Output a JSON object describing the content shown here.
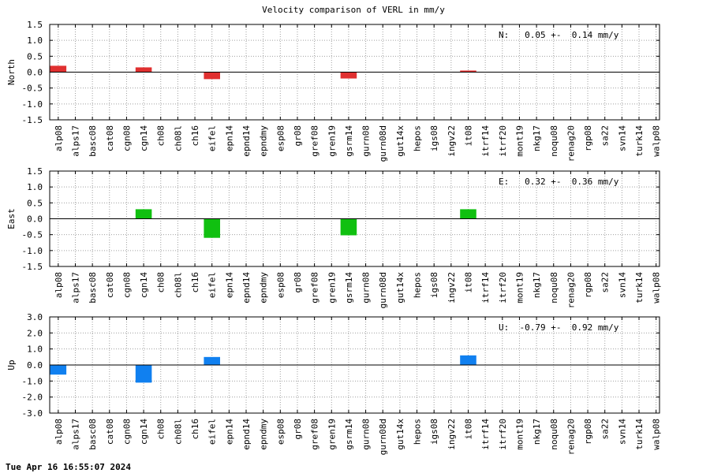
{
  "title": "Velocity comparison of VERL in mm/y",
  "timestamp": "Tue Apr 16 16:55:07 2024",
  "chart_data": [
    {
      "type": "bar",
      "ylabel": "North",
      "annotation": "N:   0.05 +-  0.14 mm/y",
      "ylim": [
        -1.5,
        1.5
      ],
      "yticks": [
        "1.5",
        "1.0",
        "0.5",
        "0.0",
        "-0.5",
        "-1.0",
        "-1.5"
      ],
      "ytick_values": [
        1.5,
        1.0,
        0.5,
        0.0,
        -0.5,
        -1.0,
        -1.5
      ],
      "color": "#e03030",
      "grid": true,
      "categories": [
        "alp08",
        "alps17",
        "basc08",
        "cat08",
        "cgn08",
        "cgn14",
        "ch08",
        "ch08l",
        "ch16",
        "eifel",
        "epn14",
        "epnd14",
        "epndmy",
        "esp08",
        "gr08",
        "gref08",
        "gren19",
        "gsrm14",
        "gurn08",
        "gurn08d",
        "gut14x",
        "hepos",
        "igs08",
        "ingv22",
        "it08",
        "itrf14",
        "itrf20",
        "mont19",
        "nkg17",
        "noqu08",
        "renag20",
        "rgp08",
        "sa22",
        "svn14",
        "turk14",
        "walp08"
      ],
      "values": [
        0.2,
        null,
        null,
        null,
        null,
        0.15,
        null,
        null,
        null,
        -0.22,
        null,
        null,
        null,
        null,
        null,
        null,
        null,
        -0.2,
        null,
        null,
        null,
        null,
        null,
        null,
        0.05,
        null,
        null,
        null,
        null,
        null,
        null,
        null,
        null,
        null,
        null,
        null
      ]
    },
    {
      "type": "bar",
      "ylabel": "East",
      "annotation": "E:   0.32 +-  0.36 mm/y",
      "ylim": [
        -1.5,
        1.5
      ],
      "yticks": [
        "1.5",
        "1.0",
        "0.5",
        "0.0",
        "-0.5",
        "-1.0",
        "-1.5"
      ],
      "ytick_values": [
        1.5,
        1.0,
        0.5,
        0.0,
        -0.5,
        -1.0,
        -1.5
      ],
      "color": "#10c010",
      "grid": true,
      "categories": [
        "alp08",
        "alps17",
        "basc08",
        "cat08",
        "cgn08",
        "cgn14",
        "ch08",
        "ch08l",
        "ch16",
        "eifel",
        "epn14",
        "epnd14",
        "epndmy",
        "esp08",
        "gr08",
        "gref08",
        "gren19",
        "gsrm14",
        "gurn08",
        "gurn08d",
        "gut14x",
        "hepos",
        "igs08",
        "ingv22",
        "it08",
        "itrf14",
        "itrf20",
        "mont19",
        "nkg17",
        "noqu08",
        "renag20",
        "rgp08",
        "sa22",
        "svn14",
        "turk14",
        "walp08"
      ],
      "values": [
        null,
        null,
        null,
        null,
        null,
        0.3,
        null,
        null,
        null,
        -0.6,
        null,
        null,
        null,
        null,
        null,
        null,
        null,
        -0.52,
        null,
        null,
        null,
        null,
        null,
        null,
        0.3,
        null,
        null,
        null,
        null,
        null,
        null,
        null,
        null,
        null,
        null,
        null
      ]
    },
    {
      "type": "bar",
      "ylabel": "Up",
      "annotation": "U:  -0.79 +-  0.92 mm/y",
      "ylim": [
        -3.0,
        3.0
      ],
      "yticks": [
        "3.0",
        "2.0",
        "1.0",
        "0.0",
        "-1.0",
        "-2.0",
        "-3.0"
      ],
      "ytick_values": [
        3.0,
        2.0,
        1.0,
        0.0,
        -1.0,
        -2.0,
        -3.0
      ],
      "color": "#1080f0",
      "grid": true,
      "categories": [
        "alp08",
        "alps17",
        "basc08",
        "cat08",
        "cgn08",
        "cgn14",
        "ch08",
        "ch08l",
        "ch16",
        "eifel",
        "epn14",
        "epnd14",
        "epndmy",
        "esp08",
        "gr08",
        "gref08",
        "gren19",
        "gsrm14",
        "gurn08",
        "gurn08d",
        "gut14x",
        "hepos",
        "igs08",
        "ingv22",
        "it08",
        "itrf14",
        "itrf20",
        "mont19",
        "nkg17",
        "noqu08",
        "renag20",
        "rgp08",
        "sa22",
        "svn14",
        "turk14",
        "walp08"
      ],
      "values": [
        -0.6,
        null,
        null,
        null,
        null,
        -1.1,
        null,
        null,
        null,
        0.5,
        null,
        null,
        null,
        null,
        null,
        null,
        null,
        null,
        null,
        null,
        null,
        null,
        null,
        null,
        0.6,
        null,
        null,
        null,
        null,
        null,
        null,
        null,
        null,
        null,
        null,
        null
      ]
    }
  ]
}
